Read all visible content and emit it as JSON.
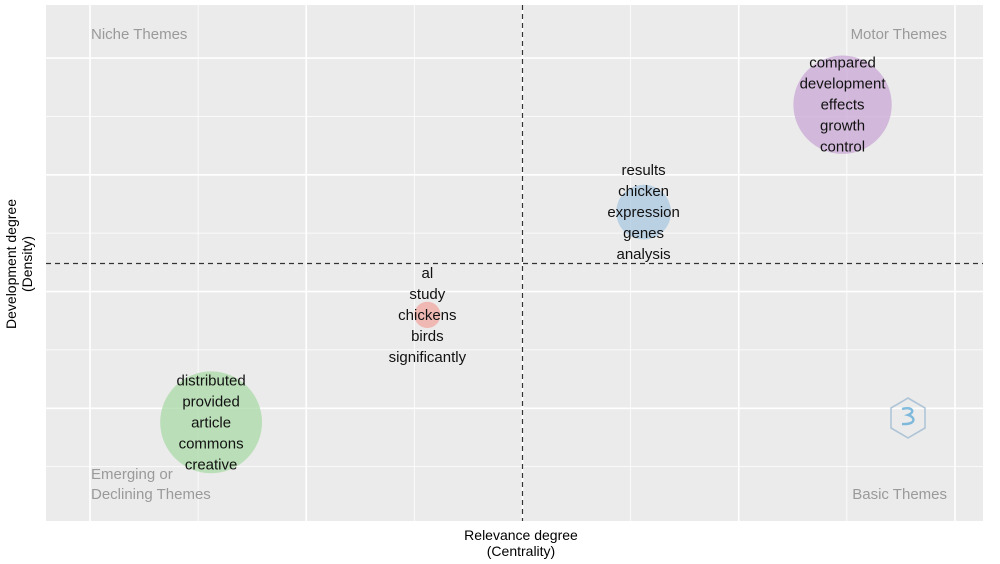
{
  "chart_data": {
    "type": "scatter",
    "title": "",
    "xlabel_line1": "Relevance degree",
    "xlabel_line2": "(Centrality)",
    "ylabel_line1": "Development degree",
    "ylabel_line2": "(Density)",
    "xlim": [
      0,
      100
    ],
    "ylim": [
      0,
      100
    ],
    "x_threshold": 50,
    "y_threshold": 50,
    "grid": true,
    "quadrant_labels": {
      "top_left": "Niche Themes",
      "top_right": "Motor Themes",
      "bottom_left_line1": "Emerging or",
      "bottom_left_line2": "Declining Themes",
      "bottom_right": "Basic Themes"
    },
    "points": [
      {
        "x": 87,
        "y": 84,
        "size": 0.042,
        "color": "#c9a8d6",
        "terms": [
          "compared",
          "development",
          "effects",
          "growth",
          "control"
        ]
      },
      {
        "x": 64,
        "y": 61,
        "size": 0.013,
        "color": "#a9c7e0",
        "terms": [
          "results",
          "chicken",
          "expression",
          "genes",
          "analysis"
        ]
      },
      {
        "x": 39,
        "y": 39,
        "size": 0.003,
        "color": "#f2a7a0",
        "terms": [
          "al",
          "study",
          "chickens",
          "birds",
          "significantly"
        ]
      },
      {
        "x": 14,
        "y": 16,
        "size": 0.045,
        "color": "#a9d9a6",
        "terms": [
          "distributed",
          "provided",
          "article",
          "commons",
          "creative"
        ]
      }
    ]
  },
  "logo": {
    "name": "bibliometrix-logo-icon"
  }
}
